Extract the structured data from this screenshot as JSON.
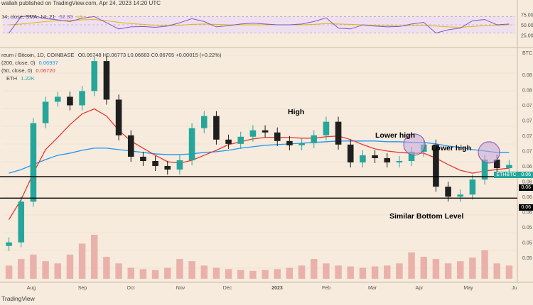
{
  "header": {
    "publisher_fragment": "walla",
    "publisher_text": "h published on TradingView.com, Apr 24, 2023 14:20 UTC"
  },
  "rsi": {
    "label": "14, close, SMA, 14, 21",
    "value": "52.30",
    "value_suffix": "n/a",
    "axis_ticks": [
      "75.00",
      "50.00",
      "25.00"
    ],
    "line_color": "#7e57c2",
    "ma_color": "#e4b800",
    "band_fill": "#efe0f0"
  },
  "main_legend": {
    "symbol_text": "reum / Bitcoin, 1D, COINBASE",
    "ohlc_text": "O0.06748 H0.06773 L0.06683 C0.06765 +0.00015 (+0.22%)",
    "ma200_label": "(200, close, 0)",
    "ma200_value": "0.06937",
    "ma50_label": "(50, close, 0)",
    "ma50_value": "0.06720",
    "volume_label": "ETH",
    "volume_value": "1.22K"
  },
  "annotations": {
    "high": "High",
    "lower_high_1": "Lower high",
    "lower_high_2": "Lower high",
    "bottom": "Similar Bottom Level"
  },
  "axis": {
    "currency": "BTC",
    "price_ticks": [
      "0.08",
      "0.08",
      "0.07",
      "0.07",
      "0.07",
      "0.07",
      "0.06",
      "0.06",
      "0.06",
      "0.06",
      "0.05",
      "0.05",
      "0.05"
    ],
    "price_tags": {
      "ticker": "ETHBTC",
      "ticker_value": "0.06",
      "support": "0.06",
      "bottom": "0.06"
    },
    "time_ticks": [
      "Aug",
      "Sep",
      "Oct",
      "Nov",
      "Dec",
      "2023",
      "Feb",
      "Mar",
      "Apr",
      "May",
      "Ju"
    ],
    "footer_text": "TradingView"
  },
  "colors": {
    "background": "#f6ebdd",
    "up_candle": "#26a69a",
    "down_candle": "#1f1f1f",
    "ma50": "#e53935",
    "ma200": "#2196f3",
    "volume": "#e8a7a2",
    "circle_fill": "#c8a7dc",
    "circle_stroke": "#7b52ab",
    "grid": "#eadbc8"
  },
  "chart_data": {
    "type": "candlestick",
    "title": "",
    "xlabel": "",
    "ylabel": "BTC",
    "ylim": [
      0.0525,
      0.0838
    ],
    "x": [
      "2022-07-15",
      "2022-07-22",
      "2022-07-29",
      "2022-08-05",
      "2022-08-12",
      "2022-08-19",
      "2022-08-26",
      "2022-09-02",
      "2022-09-09",
      "2022-09-16",
      "2022-09-23",
      "2022-09-30",
      "2022-10-07",
      "2022-10-14",
      "2022-10-21",
      "2022-10-28",
      "2022-11-04",
      "2022-11-11",
      "2022-11-18",
      "2022-11-25",
      "2022-12-02",
      "2022-12-09",
      "2022-12-16",
      "2022-12-23",
      "2022-12-30",
      "2023-01-06",
      "2023-01-13",
      "2023-01-20",
      "2023-01-27",
      "2023-02-03",
      "2023-02-10",
      "2023-02-17",
      "2023-02-24",
      "2023-03-03",
      "2023-03-10",
      "2023-03-17",
      "2023-03-24",
      "2023-03-31",
      "2023-04-07",
      "2023-04-14",
      "2023-04-21",
      "2023-04-24"
    ],
    "close": [
      0.0568,
      0.0625,
      0.0735,
      0.0765,
      0.0772,
      0.076,
      0.078,
      0.0822,
      0.0768,
      0.0718,
      0.0688,
      0.0682,
      0.0675,
      0.067,
      0.0683,
      0.0728,
      0.0745,
      0.0712,
      0.0706,
      0.0716,
      0.0725,
      0.0722,
      0.071,
      0.0704,
      0.0707,
      0.0718,
      0.0737,
      0.0705,
      0.068,
      0.069,
      0.0686,
      0.068,
      0.0682,
      0.0695,
      0.0705,
      0.0646,
      0.0632,
      0.0635,
      0.0656,
      0.0684,
      0.0672,
      0.06765
    ],
    "series": [
      {
        "name": "MA (200, close, 0)",
        "values": [
          0.0665,
          0.067,
          0.0677,
          0.0684,
          0.069,
          0.0693,
          0.0697,
          0.07,
          0.07,
          0.0698,
          0.0696,
          0.0694,
          0.0692,
          0.0691,
          0.0691,
          0.0692,
          0.0694,
          0.0695,
          0.0697,
          0.07,
          0.0702,
          0.0704,
          0.0705,
          0.0706,
          0.0707,
          0.0708,
          0.0709,
          0.071,
          0.071,
          0.071,
          0.071,
          0.0709,
          0.0709,
          0.0708,
          0.0708,
          0.0706,
          0.0703,
          0.0701,
          0.0698,
          0.0696,
          0.0694,
          0.0694
        ]
      },
      {
        "name": "MA (50, close, 0)",
        "values": [
          0.06,
          0.0628,
          0.0665,
          0.0698,
          0.0715,
          0.0733,
          0.0748,
          0.0755,
          0.0745,
          0.0725,
          0.071,
          0.07,
          0.069,
          0.0681,
          0.0679,
          0.0683,
          0.069,
          0.0697,
          0.0705,
          0.0709,
          0.0713,
          0.0715,
          0.0715,
          0.0715,
          0.0714,
          0.0714,
          0.0716,
          0.0717,
          0.0712,
          0.0705,
          0.0699,
          0.0696,
          0.0694,
          0.0693,
          0.0693,
          0.0686,
          0.0677,
          0.0669,
          0.0665,
          0.0668,
          0.067,
          0.0672
        ]
      }
    ],
    "volume": [
      0.3,
      0.45,
      0.55,
      0.4,
      0.35,
      0.55,
      0.8,
      1.0,
      0.5,
      0.35,
      0.25,
      0.22,
      0.2,
      0.25,
      0.45,
      0.4,
      0.3,
      0.25,
      0.22,
      0.2,
      0.18,
      0.2,
      0.22,
      0.25,
      0.3,
      0.45,
      0.35,
      0.3,
      0.28,
      0.25,
      0.28,
      0.3,
      0.35,
      0.6,
      0.5,
      0.45,
      0.35,
      0.4,
      0.48,
      0.65,
      0.35,
      0.3
    ],
    "rsi": [
      30,
      70,
      72,
      65,
      62,
      58,
      66,
      70,
      55,
      40,
      45,
      46,
      44,
      47,
      55,
      65,
      58,
      45,
      48,
      52,
      54,
      52,
      50,
      50,
      52,
      58,
      67,
      42,
      40,
      50,
      47,
      45,
      46,
      52,
      56,
      30,
      38,
      42,
      60,
      63,
      50,
      52
    ],
    "rsi_ma": [
      50,
      52,
      55,
      58,
      60,
      61,
      62,
      63,
      60,
      56,
      53,
      51,
      49,
      48,
      49,
      51,
      52,
      51,
      50,
      50,
      50,
      50,
      50,
      50,
      50,
      51,
      53,
      52,
      51,
      50,
      49,
      48,
      47,
      48,
      49,
      47,
      45,
      44,
      46,
      48,
      49,
      50
    ],
    "horizontal_lines": [
      0.066,
      0.063
    ],
    "grid": true,
    "legend": "top-left"
  }
}
